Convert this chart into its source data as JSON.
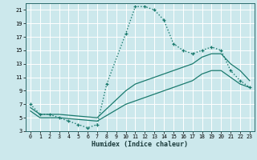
{
  "bg_color": "#cce8ec",
  "grid_color": "#ffffff",
  "line_color": "#1a7a6e",
  "red_line_color": "#d08080",
  "xlabel": "Humidex (Indice chaleur)",
  "xlim": [
    -0.5,
    23.5
  ],
  "ylim": [
    3,
    22
  ],
  "xticks": [
    0,
    1,
    2,
    3,
    4,
    5,
    6,
    7,
    8,
    9,
    10,
    11,
    12,
    13,
    14,
    15,
    16,
    17,
    18,
    19,
    20,
    21,
    22,
    23
  ],
  "yticks": [
    3,
    5,
    7,
    9,
    11,
    13,
    15,
    17,
    19,
    21
  ],
  "red_vlines": [
    5,
    10,
    15,
    20
  ],
  "red_hlines": [
    5,
    9,
    13,
    17,
    21
  ],
  "curve1_x": [
    0,
    1,
    2,
    3,
    4,
    5,
    6,
    7,
    8,
    10,
    11,
    12,
    13,
    14,
    15,
    16,
    17,
    18,
    19,
    20,
    21,
    22,
    23
  ],
  "curve1_y": [
    7,
    5.5,
    5.5,
    5,
    4.5,
    4,
    3.5,
    4,
    10,
    17.5,
    21.5,
    21.5,
    21,
    19.5,
    16,
    15,
    14.5,
    15,
    15.5,
    15,
    12,
    10.5,
    9.5
  ],
  "curve2_x": [
    0,
    1,
    2,
    3,
    7,
    10,
    11,
    12,
    14,
    17,
    18,
    19,
    20,
    21,
    22,
    23
  ],
  "curve2_y": [
    6.5,
    5.5,
    5.5,
    5.5,
    5,
    9,
    10,
    10.5,
    11.5,
    13,
    14,
    14.5,
    14.5,
    13,
    12,
    10.5
  ],
  "curve3_x": [
    0,
    1,
    2,
    3,
    7,
    10,
    11,
    12,
    14,
    17,
    18,
    19,
    20,
    21,
    22,
    23
  ],
  "curve3_y": [
    6,
    5,
    5,
    5,
    4.5,
    7,
    7.5,
    8,
    9,
    10.5,
    11.5,
    12,
    12,
    11,
    10,
    9.5
  ]
}
